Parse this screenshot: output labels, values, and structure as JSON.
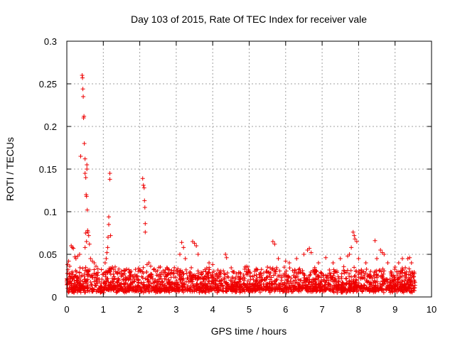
{
  "chart_data": {
    "type": "scatter",
    "title": "Day 103 of 2015, Rate Of TEC Index for receiver vale",
    "xlabel": "GPS time / hours",
    "ylabel": "ROTI / TECUs",
    "xlim": [
      0,
      10
    ],
    "ylim": [
      0,
      0.3
    ],
    "xticks": [
      "0",
      "1",
      "2",
      "3",
      "4",
      "5",
      "6",
      "7",
      "8",
      "9",
      "10"
    ],
    "yticks": [
      "0",
      "0.05",
      "0.1",
      "0.15",
      "0.2",
      "0.25",
      "0.3"
    ],
    "grid": true,
    "marker": "+",
    "series": [
      {
        "name": "ROTI",
        "color": "#ee0000",
        "points": [
          [
            0.02,
            0.038
          ],
          [
            0.05,
            0.042
          ],
          [
            0.08,
            0.036
          ],
          [
            0.12,
            0.06
          ],
          [
            0.15,
            0.058
          ],
          [
            0.18,
            0.057
          ],
          [
            0.22,
            0.047
          ],
          [
            0.25,
            0.045
          ],
          [
            0.3,
            0.048
          ],
          [
            0.35,
            0.05
          ],
          [
            0.38,
            0.165
          ],
          [
            0.42,
            0.26
          ],
          [
            0.43,
            0.257
          ],
          [
            0.44,
            0.244
          ],
          [
            0.45,
            0.235
          ],
          [
            0.46,
            0.21
          ],
          [
            0.47,
            0.212
          ],
          [
            0.48,
            0.18
          ],
          [
            0.5,
            0.162
          ],
          [
            0.5,
            0.145
          ],
          [
            0.52,
            0.14
          ],
          [
            0.53,
            0.12
          ],
          [
            0.54,
            0.118
          ],
          [
            0.55,
            0.155
          ],
          [
            0.55,
            0.15
          ],
          [
            0.56,
            0.102
          ],
          [
            0.57,
            0.078
          ],
          [
            0.58,
            0.076
          ],
          [
            0.6,
            0.072
          ],
          [
            0.62,
            0.062
          ],
          [
            0.52,
            0.075
          ],
          [
            0.54,
            0.065
          ],
          [
            0.5,
            0.058
          ],
          [
            0.65,
            0.045
          ],
          [
            0.7,
            0.042
          ],
          [
            0.75,
            0.04
          ],
          [
            0.8,
            0.036
          ],
          [
            1.1,
            0.052
          ],
          [
            1.12,
            0.058
          ],
          [
            1.13,
            0.07
          ],
          [
            1.15,
            0.094
          ],
          [
            1.15,
            0.085
          ],
          [
            1.18,
            0.145
          ],
          [
            1.18,
            0.138
          ],
          [
            1.2,
            0.072
          ],
          [
            1.08,
            0.045
          ],
          [
            1.05,
            0.04
          ],
          [
            1.25,
            0.035
          ],
          [
            2.08,
            0.139
          ],
          [
            2.1,
            0.131
          ],
          [
            2.12,
            0.128
          ],
          [
            2.13,
            0.113
          ],
          [
            2.14,
            0.105
          ],
          [
            2.15,
            0.086
          ],
          [
            2.15,
            0.076
          ],
          [
            2.2,
            0.038
          ],
          [
            2.25,
            0.04
          ],
          [
            2.3,
            0.036
          ],
          [
            3.15,
            0.064
          ],
          [
            3.2,
            0.058
          ],
          [
            3.1,
            0.05
          ],
          [
            3.25,
            0.045
          ],
          [
            3.45,
            0.065
          ],
          [
            3.5,
            0.063
          ],
          [
            3.55,
            0.06
          ],
          [
            3.6,
            0.05
          ],
          [
            3.9,
            0.04
          ],
          [
            4.0,
            0.038
          ],
          [
            4.35,
            0.05
          ],
          [
            4.38,
            0.046
          ],
          [
            5.0,
            0.03
          ],
          [
            5.2,
            0.032
          ],
          [
            5.5,
            0.035
          ],
          [
            5.65,
            0.065
          ],
          [
            5.7,
            0.062
          ],
          [
            5.8,
            0.045
          ],
          [
            6.0,
            0.042
          ],
          [
            6.1,
            0.04
          ],
          [
            6.3,
            0.045
          ],
          [
            6.5,
            0.05
          ],
          [
            6.6,
            0.055
          ],
          [
            6.65,
            0.057
          ],
          [
            6.7,
            0.052
          ],
          [
            6.9,
            0.04
          ],
          [
            7.1,
            0.046
          ],
          [
            7.3,
            0.04
          ],
          [
            7.5,
            0.045
          ],
          [
            7.7,
            0.048
          ],
          [
            7.85,
            0.076
          ],
          [
            7.88,
            0.072
          ],
          [
            7.9,
            0.068
          ],
          [
            7.95,
            0.065
          ],
          [
            7.8,
            0.058
          ],
          [
            7.75,
            0.05
          ],
          [
            8.0,
            0.045
          ],
          [
            8.2,
            0.04
          ],
          [
            8.45,
            0.066
          ],
          [
            8.5,
            0.045
          ],
          [
            8.6,
            0.055
          ],
          [
            8.65,
            0.052
          ],
          [
            8.7,
            0.05
          ],
          [
            8.8,
            0.04
          ],
          [
            9.0,
            0.035
          ],
          [
            9.1,
            0.04
          ],
          [
            9.2,
            0.045
          ],
          [
            9.35,
            0.045
          ],
          [
            9.4,
            0.046
          ],
          [
            9.45,
            0.04
          ]
        ]
      }
    ],
    "noise_band": {
      "x_range": [
        0,
        9.55
      ],
      "y_min": 0.005,
      "y_typical_max": 0.03,
      "description_free": true
    }
  }
}
